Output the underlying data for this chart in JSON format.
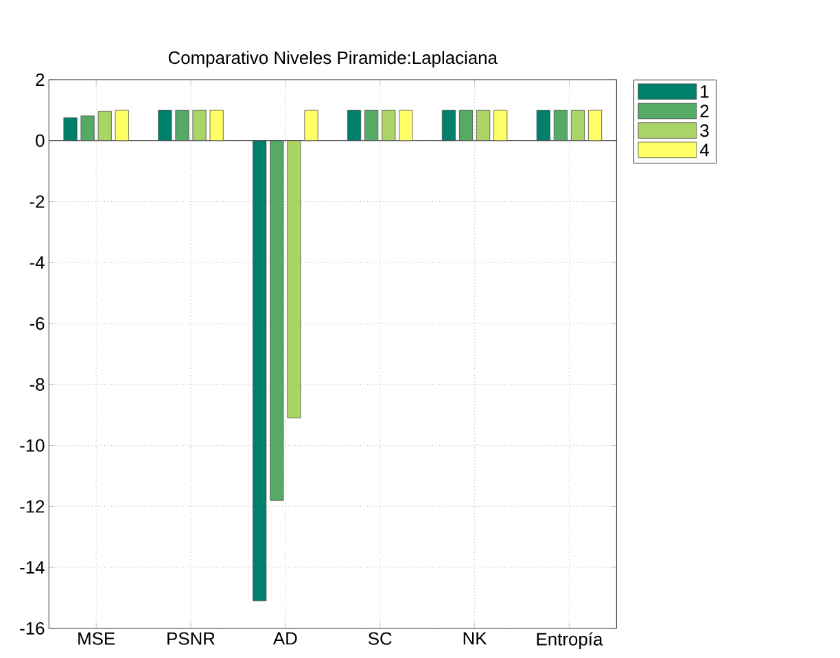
{
  "chart_data": {
    "type": "bar",
    "title": "Comparativo Niveles Piramide:Laplaciana",
    "categories": [
      "MSE",
      "PSNR",
      "AD",
      "SC",
      "NK",
      "Entropía"
    ],
    "series": [
      {
        "name": "1",
        "color": "#00806a",
        "values": [
          0.75,
          1,
          -15.1,
          1,
          1,
          1
        ]
      },
      {
        "name": "2",
        "color": "#55aa66",
        "values": [
          0.81,
          1,
          -11.8,
          1,
          1,
          1
        ]
      },
      {
        "name": "3",
        "color": "#aad466",
        "values": [
          0.96,
          1,
          -9.1,
          1,
          1,
          1
        ]
      },
      {
        "name": "4",
        "color": "#ffff66",
        "values": [
          1,
          1,
          1,
          1,
          1,
          1
        ]
      }
    ],
    "ylim": [
      -16,
      2
    ],
    "yticks": [
      -16,
      -14,
      -12,
      -10,
      -8,
      -6,
      -4,
      -2,
      0,
      2
    ],
    "grid": true,
    "legend": "top right"
  }
}
